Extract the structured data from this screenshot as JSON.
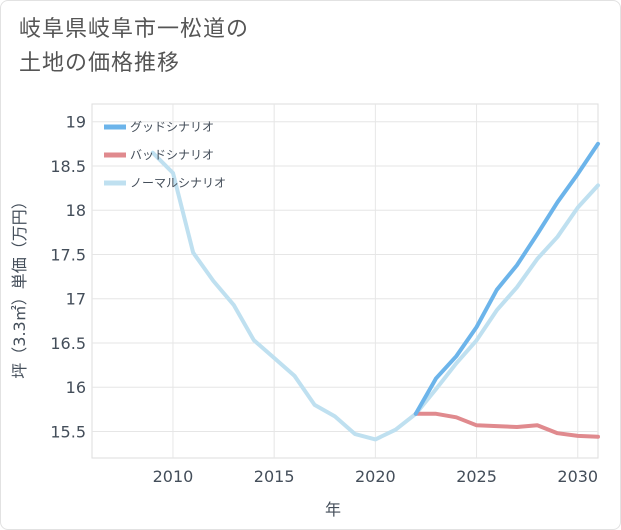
{
  "title": "岐阜県岐阜市一松道の\n土地の価格推移",
  "chart_data": {
    "type": "line",
    "xlabel": "年",
    "ylabel": "坪（3.3㎡）単価（万円）",
    "xlim": [
      2006,
      2031
    ],
    "ylim": [
      15.2,
      19.2
    ],
    "xticks": [
      2010,
      2015,
      2020,
      2025,
      2030
    ],
    "yticks": [
      15.5,
      16,
      16.5,
      17,
      17.5,
      18,
      18.5,
      19
    ],
    "xtick_labels": [
      "2010",
      "2015",
      "2020",
      "2025",
      "2030"
    ],
    "ytick_labels": [
      "15.5",
      "16",
      "16.5",
      "17",
      "17.5",
      "18",
      "18.5",
      "19"
    ],
    "grid": true,
    "legend_position": "top-left",
    "series": [
      {
        "name": "グッドシナリオ",
        "color": "#6cb4ea",
        "x": [
          2022,
          2023,
          2024,
          2025,
          2026,
          2027,
          2028,
          2029,
          2030,
          2031
        ],
        "y": [
          15.7,
          16.1,
          16.35,
          16.68,
          17.1,
          17.38,
          17.73,
          18.09,
          18.41,
          18.75
        ]
      },
      {
        "name": "バッドシナリオ",
        "color": "#e08a8e",
        "x": [
          2022,
          2023,
          2024,
          2025,
          2026,
          2027,
          2028,
          2029,
          2030,
          2031
        ],
        "y": [
          15.7,
          15.7,
          15.66,
          15.57,
          15.56,
          15.55,
          15.57,
          15.48,
          15.45,
          15.44
        ]
      },
      {
        "name": "ノーマルシナリオ",
        "color": "#bfe0f0",
        "x": [
          2009,
          2010,
          2011,
          2012,
          2013,
          2014,
          2015,
          2016,
          2017,
          2018,
          2019,
          2020,
          2021,
          2022,
          2023,
          2024,
          2025,
          2026,
          2027,
          2028,
          2029,
          2030,
          2031
        ],
        "y": [
          18.65,
          18.42,
          17.52,
          17.2,
          16.93,
          16.53,
          16.33,
          16.13,
          15.8,
          15.67,
          15.47,
          15.41,
          15.52,
          15.7,
          15.98,
          16.27,
          16.53,
          16.87,
          17.13,
          17.45,
          17.7,
          18.03,
          18.28
        ]
      }
    ]
  }
}
